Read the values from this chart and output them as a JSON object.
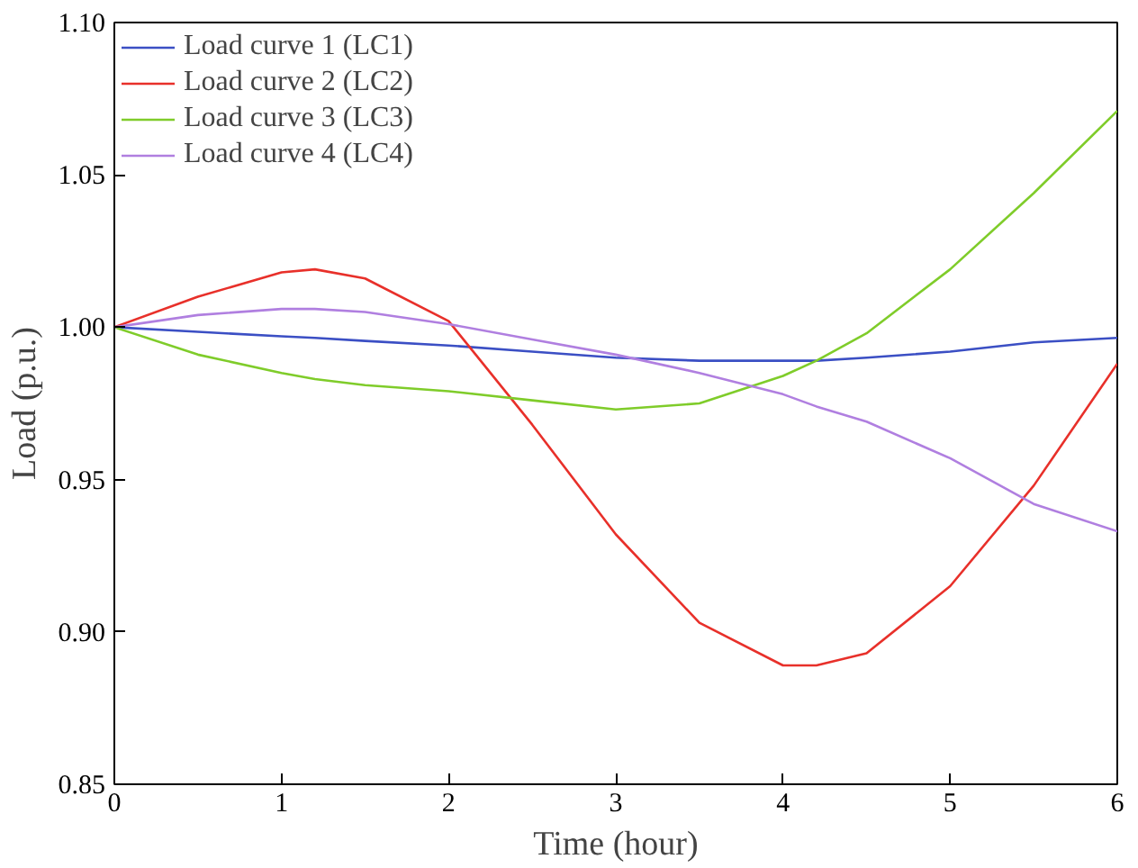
{
  "chart_data": {
    "type": "line",
    "xlabel": "Time (hour)",
    "ylabel": "Load (p.u.)",
    "xlim": [
      0,
      6
    ],
    "ylim": [
      0.85,
      1.1
    ],
    "xticks": [
      0,
      1,
      2,
      3,
      4,
      5,
      6
    ],
    "yticks": [
      0.85,
      {
        "value": 0.9,
        "label": "0.90"
      },
      0.95,
      {
        "value": 1.0,
        "label": "1.00"
      },
      1.05,
      {
        "value": 1.1,
        "label": "1.10"
      }
    ],
    "grid": false,
    "legend": "top left",
    "marker": "none",
    "line_style": "solid",
    "x": [
      0,
      0.5,
      1,
      1.2,
      1.5,
      2,
      2.5,
      3,
      3.5,
      4,
      4.2,
      4.5,
      5,
      5.5,
      6
    ],
    "series": [
      {
        "name": "Load curve 1 (LC1)",
        "color": "#3b4fc4",
        "values": [
          1.0,
          0.9985,
          0.997,
          0.9965,
          0.9955,
          0.994,
          0.992,
          0.99,
          0.989,
          0.989,
          0.989,
          0.99,
          0.992,
          0.995,
          0.9965
        ]
      },
      {
        "name": "Load curve 2 (LC2)",
        "color": "#e8302a",
        "values": [
          1.0,
          1.01,
          1.018,
          1.019,
          1.016,
          1.002,
          0.968,
          0.932,
          0.903,
          0.889,
          0.889,
          0.893,
          0.915,
          0.948,
          0.988
        ]
      },
      {
        "name": "Load curve 3 (LC3)",
        "color": "#7fcc2a",
        "values": [
          1.0,
          0.991,
          0.985,
          0.983,
          0.981,
          0.979,
          0.976,
          0.973,
          0.975,
          0.984,
          0.989,
          0.998,
          1.019,
          1.044,
          1.071
        ]
      },
      {
        "name": "Load curve 4 (LC4)",
        "color": "#b07fe0",
        "values": [
          1.0,
          1.004,
          1.006,
          1.006,
          1.005,
          1.001,
          0.996,
          0.991,
          0.985,
          0.978,
          0.974,
          0.969,
          0.957,
          0.942,
          0.933
        ]
      }
    ]
  }
}
